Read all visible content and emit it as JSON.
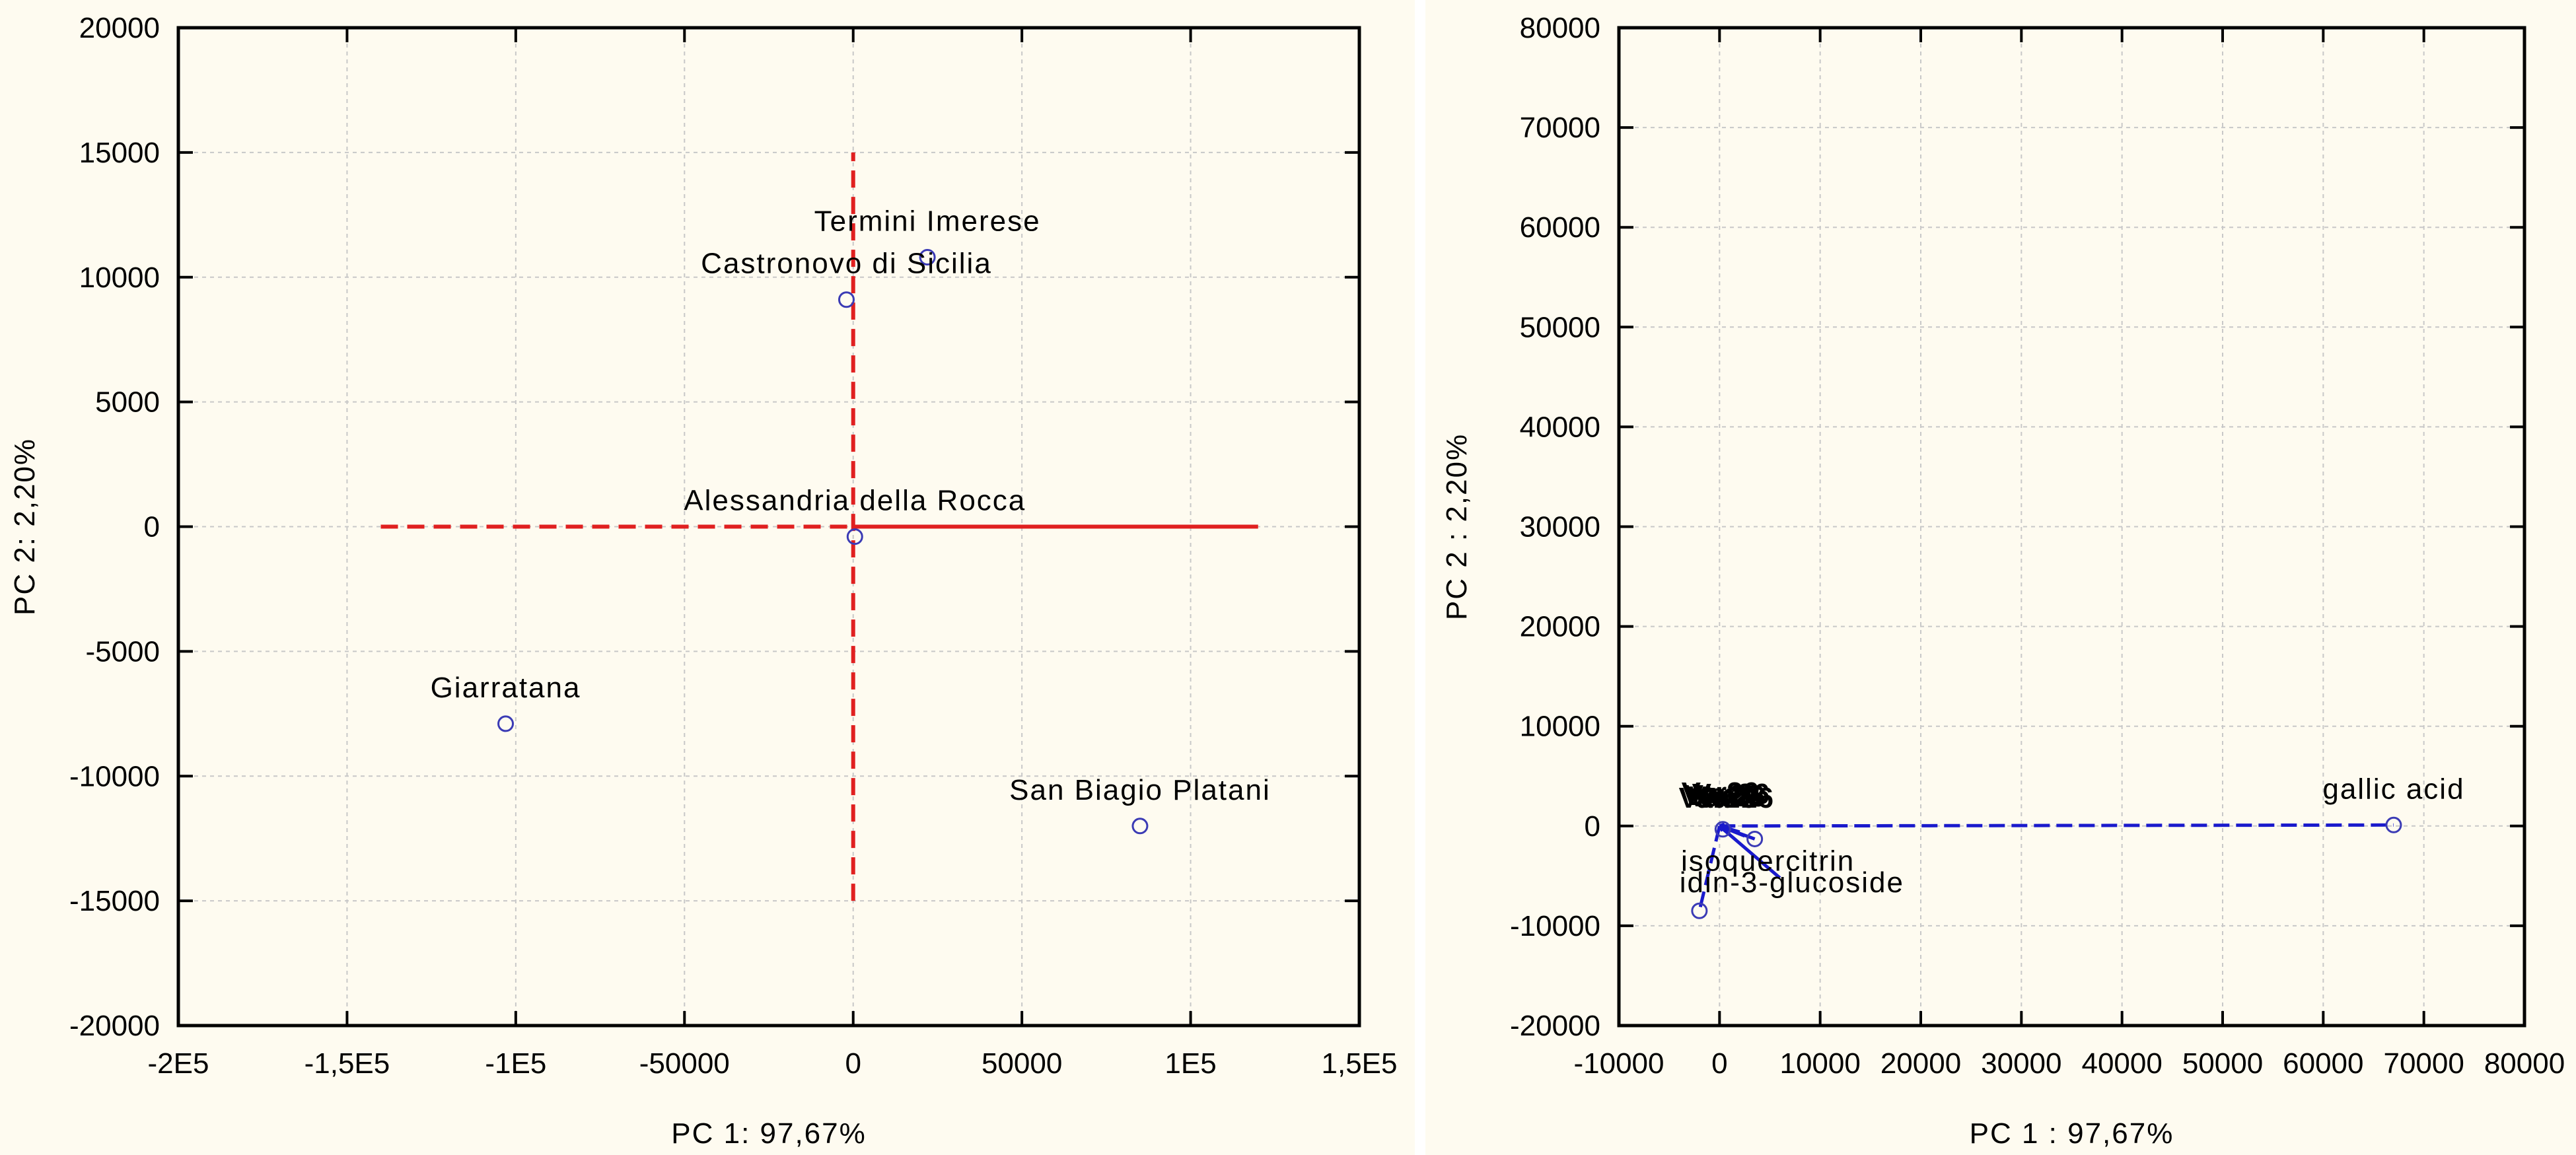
{
  "chart_data": [
    {
      "type": "scatter",
      "title": "",
      "xlabel": "PC  1: 97,67%",
      "ylabel": "PC  2:  2,20%",
      "xlim": [
        -200000,
        150000
      ],
      "ylim": [
        -20000,
        20000
      ],
      "xticks": [
        {
          "value": -200000,
          "label": "-2E5"
        },
        {
          "value": -150000,
          "label": "-1,5E5"
        },
        {
          "value": -100000,
          "label": "-1E5"
        },
        {
          "value": -50000,
          "label": "-50000"
        },
        {
          "value": 0,
          "label": "0"
        },
        {
          "value": 50000,
          "label": "50000"
        },
        {
          "value": 100000,
          "label": "1E5"
        },
        {
          "value": 150000,
          "label": "1,5E5"
        }
      ],
      "yticks": [
        {
          "value": -20000,
          "label": "-20000"
        },
        {
          "value": -15000,
          "label": "-15000"
        },
        {
          "value": -10000,
          "label": "-10000"
        },
        {
          "value": -5000,
          "label": "-5000"
        },
        {
          "value": 0,
          "label": "0"
        },
        {
          "value": 5000,
          "label": "5000"
        },
        {
          "value": 10000,
          "label": "10000"
        },
        {
          "value": 15000,
          "label": "15000"
        },
        {
          "value": 20000,
          "label": "20000"
        }
      ],
      "grid": true,
      "reference_lines": [
        {
          "x": [
            -140000,
            0
          ],
          "y": [
            0,
            0
          ],
          "style": "dashed"
        },
        {
          "x": [
            0,
            120000
          ],
          "y": [
            0,
            0
          ],
          "style": "solid"
        },
        {
          "x": [
            0,
            0
          ],
          "y": [
            -15000,
            15000
          ],
          "style": "dashed"
        }
      ],
      "points": [
        {
          "label": "Termini Imerese",
          "x": 22000,
          "y": 10800
        },
        {
          "label": "Castronovo di Sicilia",
          "x": -2000,
          "y": 9100
        },
        {
          "label": "Alessandria della Rocca",
          "x": 500,
          "y": -400
        },
        {
          "label": "Giarratana",
          "x": -103000,
          "y": -7900
        },
        {
          "label": "San Biagio Platani",
          "x": 85000,
          "y": -12000
        }
      ],
      "colors": {
        "point": "#3b3bb5",
        "reference": "#e02020",
        "grid": "#c8c8c8"
      }
    },
    {
      "type": "scatter",
      "title": "",
      "xlabel": "PC  1 : 97,67%",
      "ylabel": "PC  2 :  2,20%",
      "xlim": [
        -10000,
        80000
      ],
      "ylim": [
        -20000,
        80000
      ],
      "xticks": [
        {
          "value": -10000,
          "label": "-10000"
        },
        {
          "value": 0,
          "label": "0"
        },
        {
          "value": 10000,
          "label": "10000"
        },
        {
          "value": 20000,
          "label": "20000"
        },
        {
          "value": 30000,
          "label": "30000"
        },
        {
          "value": 40000,
          "label": "40000"
        },
        {
          "value": 50000,
          "label": "50000"
        },
        {
          "value": 60000,
          "label": "60000"
        },
        {
          "value": 70000,
          "label": "70000"
        },
        {
          "value": 80000,
          "label": "80000"
        }
      ],
      "yticks": [
        {
          "value": -20000,
          "label": "-20000"
        },
        {
          "value": -10000,
          "label": "-10000"
        },
        {
          "value": 0,
          "label": "0"
        },
        {
          "value": 10000,
          "label": "10000"
        },
        {
          "value": 20000,
          "label": "20000"
        },
        {
          "value": 30000,
          "label": "30000"
        },
        {
          "value": 40000,
          "label": "40000"
        },
        {
          "value": 50000,
          "label": "50000"
        },
        {
          "value": 60000,
          "label": "60000"
        },
        {
          "value": 70000,
          "label": "70000"
        },
        {
          "value": 80000,
          "label": "80000"
        }
      ],
      "grid": true,
      "points": [
        {
          "label": "gallic acid",
          "x": 67000,
          "y": 100
        },
        {
          "label": "isoquercitrin",
          "x": 3500,
          "y": -1300
        },
        {
          "label": "idin-3-glucoside",
          "x": -2000,
          "y": -8500
        }
      ],
      "overlapping_labels": "Var26",
      "vectors": [
        {
          "x": 67000,
          "y": 100,
          "style": "dashed"
        },
        {
          "x": 3500,
          "y": -1300,
          "style": "solid"
        },
        {
          "x": -2000,
          "y": -8500,
          "style": "dashed"
        },
        {
          "x": 6000,
          "y": -5200,
          "style": "solid"
        },
        {
          "x": 500,
          "y": 200,
          "style": "solid"
        },
        {
          "x": 1000,
          "y": -300,
          "style": "solid"
        },
        {
          "x": 1500,
          "y": 0,
          "style": "solid"
        },
        {
          "x": 800,
          "y": -700,
          "style": "solid"
        },
        {
          "x": 2000,
          "y": -600,
          "style": "solid"
        },
        {
          "x": 300,
          "y": -500,
          "style": "solid"
        },
        {
          "x": 2500,
          "y": -1000,
          "style": "solid"
        }
      ],
      "colors": {
        "point": "#3b3bb5",
        "vector": "#1a1acc",
        "grid": "#c8c8c8"
      }
    }
  ]
}
